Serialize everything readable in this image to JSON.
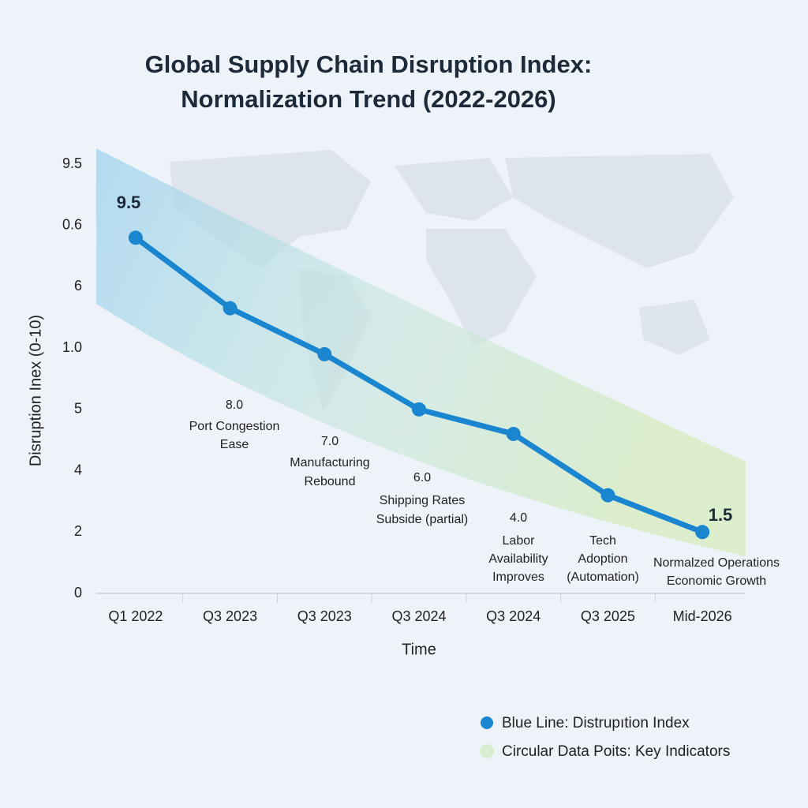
{
  "chart_data": {
    "type": "line",
    "title": [
      "Global Supply Chain Disruption Index:",
      "Normalization Trend (2022-2026)"
    ],
    "x_label": "Time",
    "y_label": "Disruption Inex (0-10)",
    "categories": [
      "Q1 2022",
      "Q3 2023",
      "Q3 2023",
      "Q3 2024",
      "Q3 2024",
      "Q3 2025",
      "Mid-2026"
    ],
    "series": [
      {
        "name": "Blue Line: Distrupıtion Index",
        "color": "#1a86d0",
        "values": [
          5.8,
          4.65,
          3.9,
          3.0,
          2.6,
          1.6,
          1.0
        ]
      }
    ],
    "legend_extra": {
      "label": "Circular Data Poits: Key Indicators",
      "color": "#d9ecd0"
    },
    "ylim": [
      0,
      7
    ],
    "yticks": [
      0,
      {
        "value": 1,
        "label": "2"
      },
      {
        "value": 2,
        "label": "4"
      },
      {
        "value": 3,
        "label": "5"
      },
      {
        "value": 4,
        "label": "1.0"
      },
      {
        "value": 5,
        "label": "6"
      },
      {
        "value": 6,
        "label": "0.6"
      },
      {
        "value": 7,
        "label": "9.5"
      }
    ],
    "annotations": [
      [
        "9.5"
      ],
      [
        "8.0",
        "Port Congestion",
        "Ease"
      ],
      [
        "7.0",
        "Manufacturing",
        "Rebound"
      ],
      [
        "6.0",
        "Shipping Rates",
        "Subside (partial)"
      ],
      [
        "4.0",
        "Labor",
        "Availability",
        "Improves"
      ],
      [
        "Tech",
        "Adoption",
        "(Automation)"
      ],
      [
        "1.5"
      ],
      [
        "Normalzed Operations",
        "Economic Growth"
      ]
    ]
  }
}
